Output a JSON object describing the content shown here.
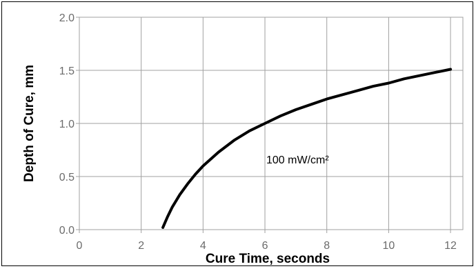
{
  "chart_data": {
    "type": "line",
    "xlabel": "Cure Time, seconds",
    "ylabel": "Depth of Cure, mm",
    "xlim": [
      0,
      12.4
    ],
    "ylim": [
      0,
      2.0
    ],
    "x_ticks": [
      "0",
      "2",
      "4",
      "6",
      "8",
      "10",
      "12"
    ],
    "y_ticks": [
      "0.0",
      "0.5",
      "1.0",
      "1.5",
      "2.0"
    ],
    "grid": true,
    "annotation": "100 mW/cm²",
    "series": [
      {
        "x": [
          2.7,
          2.85,
          3.0,
          3.25,
          3.5,
          3.75,
          4.0,
          4.5,
          5.0,
          5.5,
          6.0,
          6.5,
          7.0,
          7.5,
          8.0,
          8.5,
          9.0,
          9.5,
          10.0,
          10.5,
          11.0,
          11.5,
          12.0
        ],
        "y": [
          0.02,
          0.12,
          0.21,
          0.33,
          0.43,
          0.52,
          0.6,
          0.73,
          0.84,
          0.93,
          1.0,
          1.07,
          1.13,
          1.18,
          1.23,
          1.27,
          1.31,
          1.35,
          1.38,
          1.42,
          1.45,
          1.48,
          1.51
        ]
      }
    ],
    "colors": {
      "line": "#000000",
      "grid": "#a0a0a0",
      "tick_text": "#6b6b6b"
    }
  }
}
